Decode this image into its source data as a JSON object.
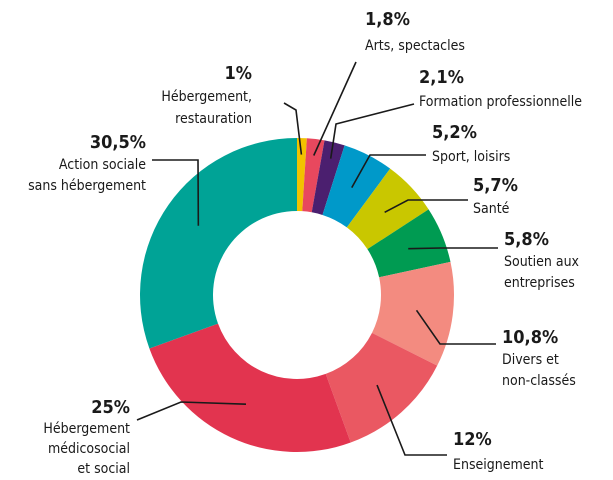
{
  "chart_data": {
    "type": "donut",
    "labels": [
      [
        "Hébergement,",
        "restauration"
      ],
      [
        "Arts, spectacles"
      ],
      [
        "Formation professionnelle"
      ],
      [
        "Sport, loisirs"
      ],
      [
        "Santé"
      ],
      [
        "Soutien aux",
        "entreprises"
      ],
      [
        "Divers et",
        "non-classés"
      ],
      [
        "Enseignement"
      ],
      [
        "Hébergement",
        "médicosocial",
        "et social"
      ],
      [
        "Action sociale",
        "sans hébergement"
      ]
    ],
    "values": [
      1,
      1.8,
      2.1,
      5.2,
      5.7,
      5.8,
      10.8,
      12,
      25,
      30.5
    ],
    "value_labels": [
      "1%",
      "1,8%",
      "2,1%",
      "5,2%",
      "5,7%",
      "5,8%",
      "10,8%",
      "12%",
      "25%",
      "30,5%"
    ],
    "colors": [
      "#f2c200",
      "#e8485e",
      "#4b1f6f",
      "#0099c9",
      "#c9c700",
      "#009b52",
      "#f38b80",
      "#ea5862",
      "#e2344f",
      "#00a396"
    ]
  }
}
